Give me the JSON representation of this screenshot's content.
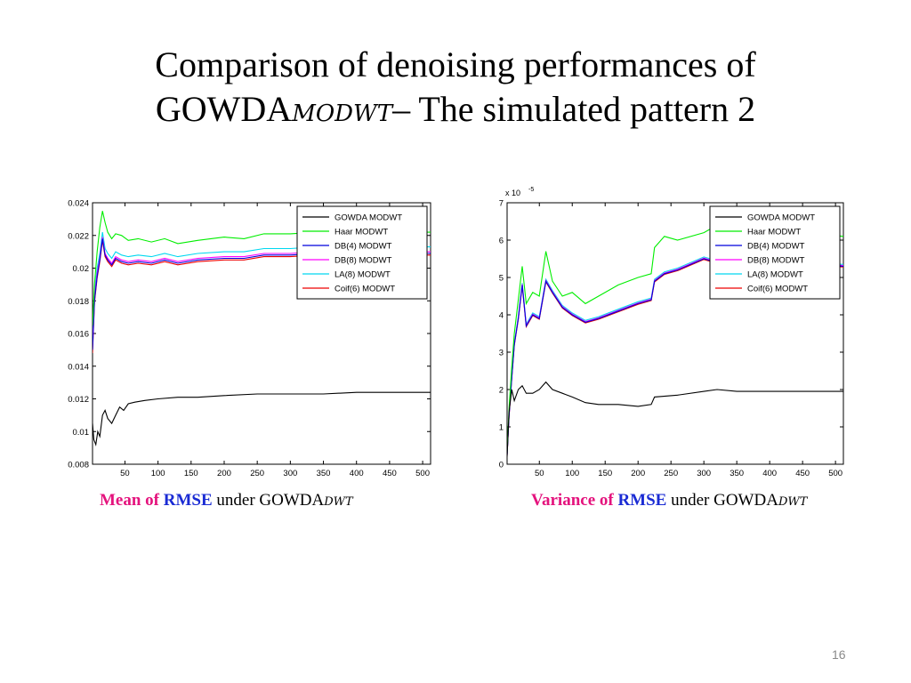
{
  "slide": {
    "title_line1": "Comparison of denoising performances of",
    "title_line2_main": "GOWDA",
    "title_line2_sub": "MODWT",
    "title_line2_rest": "– The simulated pattern 2",
    "page_number": "16"
  },
  "captions": {
    "left": {
      "part1": "Mean of ",
      "part2": "RMSE",
      "part3": " under GOWDA",
      "sub": "DWT"
    },
    "right": {
      "part1": "Variance of ",
      "part2": "RMSE",
      "part3": " under GOWDA",
      "sub": "DWT"
    }
  },
  "chart_data": [
    {
      "type": "line",
      "title": "",
      "xlabel": "",
      "ylabel": "",
      "xlim": [
        1,
        512
      ],
      "ylim": [
        0.008,
        0.024
      ],
      "xticks": [
        50,
        100,
        150,
        200,
        250,
        300,
        350,
        400,
        450,
        500
      ],
      "xtick_labels": [
        "50",
        "100",
        "150",
        "200",
        "250",
        "300",
        "350",
        "400",
        "450",
        "500"
      ],
      "yticks": [
        0.008,
        0.01,
        0.012,
        0.014,
        0.016,
        0.018,
        0.02,
        0.022,
        0.024
      ],
      "ytick_labels": [
        "0.008",
        "0.01",
        "0.012",
        "0.014",
        "0.016",
        "0.018",
        "0.02",
        "0.022",
        "0.024"
      ],
      "grid": false,
      "legend_position": "top-right",
      "series": [
        {
          "name": "GOWDA MODWT",
          "color": "#000000",
          "x": [
            1,
            3,
            6,
            9,
            12,
            16,
            20,
            24,
            30,
            36,
            42,
            48,
            55,
            65,
            80,
            100,
            130,
            160,
            200,
            250,
            300,
            350,
            400,
            450,
            512
          ],
          "y": [
            0.0105,
            0.0095,
            0.0092,
            0.01,
            0.0097,
            0.011,
            0.0113,
            0.0108,
            0.0105,
            0.011,
            0.0115,
            0.0113,
            0.0117,
            0.0118,
            0.0119,
            0.012,
            0.0121,
            0.0121,
            0.0122,
            0.0123,
            0.0123,
            0.0123,
            0.0124,
            0.0124,
            0.0124
          ]
        },
        {
          "name": "Haar MODWT",
          "color": "#00ee00",
          "x": [
            1,
            4,
            8,
            12,
            16,
            20,
            24,
            30,
            36,
            45,
            55,
            70,
            90,
            110,
            130,
            160,
            200,
            230,
            260,
            300,
            340,
            380,
            420,
            460,
            512
          ],
          "y": [
            0.0165,
            0.019,
            0.021,
            0.0225,
            0.0235,
            0.0228,
            0.0222,
            0.0218,
            0.0221,
            0.022,
            0.0217,
            0.0218,
            0.0216,
            0.0218,
            0.0215,
            0.0217,
            0.0219,
            0.0218,
            0.0221,
            0.0221,
            0.0222,
            0.0223,
            0.0223,
            0.0222,
            0.0222
          ]
        },
        {
          "name": "DB(4) MODWT",
          "color": "#0000dd",
          "x": [
            1,
            4,
            8,
            12,
            16,
            20,
            24,
            30,
            36,
            45,
            55,
            70,
            90,
            110,
            130,
            160,
            200,
            230,
            260,
            300,
            340,
            380,
            420,
            460,
            512
          ],
          "y": [
            0.015,
            0.018,
            0.0195,
            0.0205,
            0.0218,
            0.0208,
            0.0205,
            0.0202,
            0.0206,
            0.0204,
            0.0203,
            0.0204,
            0.0203,
            0.0205,
            0.0203,
            0.0205,
            0.0206,
            0.0206,
            0.0208,
            0.0208,
            0.0209,
            0.0209,
            0.021,
            0.0209,
            0.0209
          ]
        },
        {
          "name": "DB(8) MODWT",
          "color": "#ff00ff",
          "x": [
            1,
            4,
            8,
            12,
            16,
            20,
            24,
            30,
            36,
            45,
            55,
            70,
            90,
            110,
            130,
            160,
            200,
            230,
            260,
            300,
            340,
            380,
            420,
            460,
            512
          ],
          "y": [
            0.0152,
            0.0182,
            0.0197,
            0.0206,
            0.0219,
            0.0209,
            0.0206,
            0.0203,
            0.0207,
            0.0205,
            0.0204,
            0.0205,
            0.0204,
            0.0206,
            0.0204,
            0.0206,
            0.0207,
            0.0207,
            0.0209,
            0.0209,
            0.021,
            0.021,
            0.0211,
            0.021,
            0.021
          ]
        },
        {
          "name": "LA(8) MODWT",
          "color": "#00d8f0",
          "x": [
            1,
            4,
            8,
            12,
            16,
            20,
            24,
            30,
            36,
            45,
            55,
            70,
            90,
            110,
            130,
            160,
            200,
            230,
            260,
            300,
            340,
            380,
            420,
            460,
            512
          ],
          "y": [
            0.0155,
            0.0185,
            0.02,
            0.0209,
            0.0222,
            0.0212,
            0.0209,
            0.0206,
            0.021,
            0.0208,
            0.0207,
            0.0208,
            0.0207,
            0.0209,
            0.0207,
            0.0209,
            0.021,
            0.021,
            0.0212,
            0.0212,
            0.0213,
            0.0213,
            0.0214,
            0.0213,
            0.0213
          ]
        },
        {
          "name": "Coif(6) MODWT",
          "color": "#ee0000",
          "x": [
            1,
            4,
            8,
            12,
            16,
            20,
            24,
            30,
            36,
            45,
            55,
            70,
            90,
            110,
            130,
            160,
            200,
            230,
            260,
            300,
            340,
            380,
            420,
            460,
            512
          ],
          "y": [
            0.0148,
            0.0179,
            0.0194,
            0.0204,
            0.0217,
            0.0207,
            0.0204,
            0.0201,
            0.0205,
            0.0203,
            0.0202,
            0.0203,
            0.0202,
            0.0204,
            0.0202,
            0.0204,
            0.0205,
            0.0205,
            0.0207,
            0.0207,
            0.0208,
            0.0208,
            0.0209,
            0.0208,
            0.0208
          ]
        }
      ]
    },
    {
      "type": "line",
      "title": "",
      "xlabel": "",
      "ylabel": "",
      "y_multiplier_label": "x 10",
      "y_multiplier_exponent": "-5",
      "xlim": [
        1,
        512
      ],
      "ylim": [
        0,
        7
      ],
      "xticks": [
        50,
        100,
        150,
        200,
        250,
        300,
        350,
        400,
        450,
        500
      ],
      "xtick_labels": [
        "50",
        "100",
        "150",
        "200",
        "250",
        "300",
        "350",
        "400",
        "450",
        "500"
      ],
      "yticks": [
        0,
        1,
        2,
        3,
        4,
        5,
        6,
        7
      ],
      "ytick_labels": [
        "0",
        "1",
        "2",
        "3",
        "4",
        "5",
        "6",
        "7"
      ],
      "grid": false,
      "legend_position": "top-right",
      "series": [
        {
          "name": "GOWDA MODWT",
          "color": "#000000",
          "x": [
            1,
            4,
            8,
            12,
            18,
            24,
            30,
            40,
            50,
            60,
            70,
            85,
            100,
            120,
            140,
            170,
            200,
            220,
            225,
            260,
            300,
            320,
            350,
            400,
            450,
            512
          ],
          "y": [
            0.2,
            1.4,
            2.0,
            1.7,
            2.0,
            2.1,
            1.9,
            1.9,
            2.0,
            2.2,
            2.0,
            1.9,
            1.8,
            1.65,
            1.6,
            1.6,
            1.55,
            1.6,
            1.8,
            1.85,
            1.95,
            2.0,
            1.95,
            1.95,
            1.95,
            1.95
          ]
        },
        {
          "name": "Haar MODWT",
          "color": "#00ee00",
          "x": [
            1,
            4,
            8,
            12,
            18,
            24,
            30,
            40,
            50,
            60,
            70,
            85,
            100,
            120,
            140,
            170,
            200,
            220,
            225,
            240,
            260,
            300,
            320,
            340,
            380,
            420,
            460,
            512
          ],
          "y": [
            0.3,
            1.5,
            2.6,
            3.5,
            4.4,
            5.3,
            4.3,
            4.6,
            4.5,
            5.7,
            4.9,
            4.5,
            4.6,
            4.3,
            4.5,
            4.8,
            5.0,
            5.1,
            5.8,
            6.1,
            6.0,
            6.2,
            6.4,
            6.2,
            6.3,
            6.3,
            6.2,
            6.1
          ]
        },
        {
          "name": "DB(4) MODWT",
          "color": "#0000dd",
          "x": [
            1,
            4,
            8,
            12,
            18,
            24,
            30,
            40,
            50,
            60,
            70,
            85,
            100,
            120,
            140,
            170,
            200,
            220,
            225,
            240,
            260,
            300,
            320,
            340,
            380,
            420,
            460,
            512
          ],
          "y": [
            0.25,
            1.3,
            2.3,
            3.2,
            3.9,
            4.8,
            3.7,
            4.0,
            3.9,
            4.9,
            4.6,
            4.2,
            4.0,
            3.8,
            3.9,
            4.1,
            4.3,
            4.4,
            4.9,
            5.1,
            5.2,
            5.5,
            5.4,
            5.5,
            5.5,
            5.4,
            5.35,
            5.3
          ]
        },
        {
          "name": "DB(8) MODWT",
          "color": "#ff00ff",
          "x": [
            1,
            4,
            8,
            12,
            18,
            24,
            30,
            40,
            50,
            60,
            70,
            85,
            100,
            120,
            140,
            170,
            200,
            220,
            225,
            240,
            260,
            300,
            320,
            340,
            380,
            420,
            460,
            512
          ],
          "y": [
            0.25,
            1.32,
            2.32,
            3.22,
            3.92,
            4.82,
            3.72,
            4.02,
            3.92,
            4.92,
            4.62,
            4.22,
            4.02,
            3.82,
            3.92,
            4.12,
            4.32,
            4.42,
            4.92,
            5.12,
            5.22,
            5.52,
            5.42,
            5.52,
            5.52,
            5.42,
            5.37,
            5.32
          ]
        },
        {
          "name": "LA(8) MODWT",
          "color": "#00d8f0",
          "x": [
            1,
            4,
            8,
            12,
            18,
            24,
            30,
            40,
            50,
            60,
            70,
            85,
            100,
            120,
            140,
            170,
            200,
            220,
            225,
            240,
            260,
            300,
            320,
            340,
            380,
            420,
            460,
            512
          ],
          "y": [
            0.26,
            1.34,
            2.34,
            3.24,
            3.95,
            4.85,
            3.75,
            4.05,
            3.95,
            4.95,
            4.65,
            4.25,
            4.05,
            3.85,
            3.95,
            4.15,
            4.35,
            4.45,
            4.95,
            5.15,
            5.25,
            5.55,
            5.45,
            5.55,
            5.55,
            5.45,
            5.4,
            5.35
          ]
        },
        {
          "name": "Coif(6) MODWT",
          "color": "#ee0000",
          "x": [
            1,
            4,
            8,
            12,
            18,
            24,
            30,
            40,
            50,
            60,
            70,
            85,
            100,
            120,
            140,
            170,
            200,
            220,
            225,
            240,
            260,
            300,
            320,
            340,
            380,
            420,
            460,
            512
          ],
          "y": [
            0.24,
            1.28,
            2.28,
            3.18,
            3.88,
            4.78,
            3.68,
            3.98,
            3.88,
            4.88,
            4.58,
            4.18,
            3.98,
            3.78,
            3.88,
            4.08,
            4.28,
            4.38,
            4.88,
            5.08,
            5.18,
            5.48,
            5.38,
            5.48,
            5.48,
            5.38,
            5.33,
            5.28
          ]
        }
      ]
    }
  ]
}
